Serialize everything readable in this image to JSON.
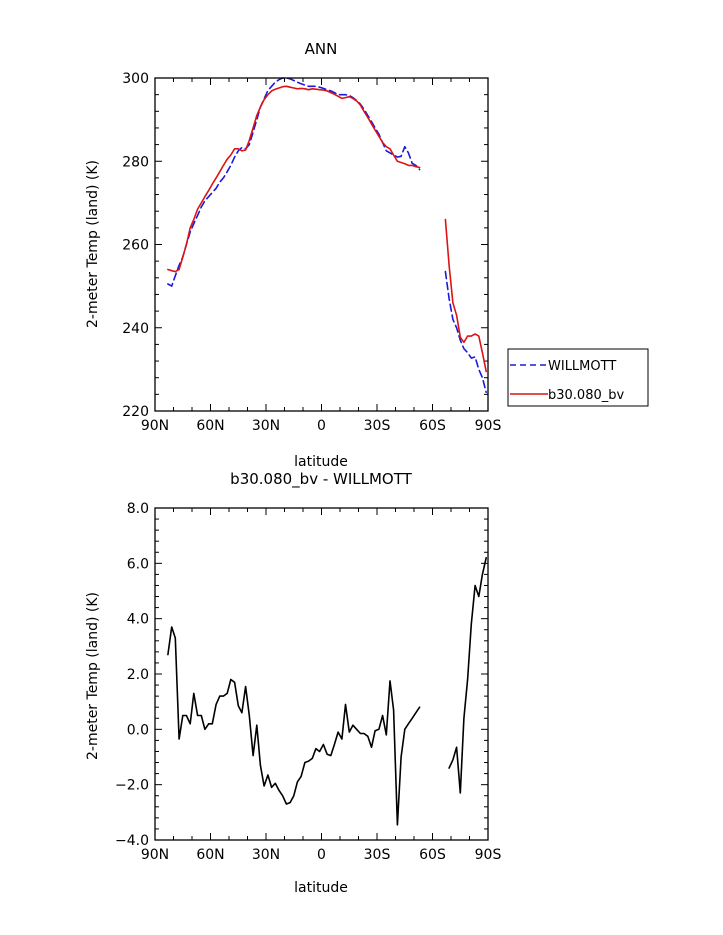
{
  "chart_data": [
    {
      "type": "line",
      "title": "ANN",
      "xlabel": "latitude",
      "ylabel": "2-meter Temp (land) (K)",
      "xlim": [
        90,
        -90
      ],
      "ylim": [
        220,
        300
      ],
      "xticks": [
        90,
        60,
        30,
        0,
        -30,
        -60,
        -90
      ],
      "xtick_labels": [
        "90N",
        "60N",
        "30N",
        "0",
        "30S",
        "60S",
        "90S"
      ],
      "yticks": [
        220,
        240,
        260,
        280,
        300
      ],
      "ytick_labels": [
        "220",
        "240",
        "260",
        "280",
        "300"
      ],
      "legend_position": "right",
      "series": [
        {
          "name": "WILLMOTT",
          "color": "#1a1adc",
          "dash": "dashed",
          "segments": [
            {
              "x": [
                83,
                81,
                79,
                77,
                75,
                73,
                71,
                69,
                67,
                65,
                63,
                61,
                59,
                57,
                55,
                53,
                51,
                49,
                47,
                45,
                43,
                41,
                39,
                37,
                35,
                33,
                31,
                29,
                27,
                25,
                23,
                21,
                19,
                17,
                15,
                13,
                11,
                9,
                7,
                5,
                3,
                1,
                -1,
                -3,
                -5,
                -7,
                -9,
                -11,
                -13,
                -15,
                -17,
                -19,
                -21,
                -23,
                -25,
                -27,
                -29,
                -31,
                -33,
                -35,
                -37,
                -39,
                -41,
                -43,
                -45,
                -47,
                -49,
                -51,
                -53
              ],
              "y": [
                250.5,
                250,
                252.5,
                255,
                257,
                260,
                263,
                265,
                267,
                269,
                270.5,
                271.5,
                272.5,
                273.5,
                275,
                276,
                277.5,
                279,
                281,
                282.5,
                283.3,
                283,
                284,
                287,
                290,
                293,
                295,
                297,
                298,
                299,
                299.6,
                300,
                300,
                299.8,
                299.4,
                299,
                298.6,
                298.3,
                298,
                298,
                298,
                297.8,
                297.5,
                297.2,
                296.9,
                296.5,
                296,
                296,
                296,
                295.8,
                295.3,
                294.6,
                293.7,
                292.5,
                291,
                289.5,
                288,
                286.5,
                284.5,
                282.5,
                282,
                281.5,
                281,
                281.2,
                283.5,
                282,
                279.5,
                279,
                278
              ]
            },
            {
              "x": [
                -67,
                -69,
                -71,
                -73,
                -75,
                -77,
                -79,
                -81,
                -83,
                -85,
                -87,
                -89
              ],
              "y": [
                253.5,
                247,
                242,
                240,
                237,
                235,
                234,
                232.7,
                233,
                230,
                228,
                224.5
              ]
            }
          ]
        },
        {
          "name": "b30.080_bv",
          "color": "#dc1414",
          "dash": "solid",
          "segments": [
            {
              "x": [
                83,
                81,
                79,
                77,
                75,
                73,
                71,
                69,
                67,
                65,
                63,
                61,
                59,
                57,
                55,
                53,
                51,
                49,
                47,
                45,
                43,
                41,
                39,
                37,
                35,
                33,
                31,
                29,
                27,
                25,
                23,
                21,
                19,
                17,
                15,
                13,
                11,
                9,
                7,
                5,
                3,
                1,
                -1,
                -3,
                -5,
                -7,
                -9,
                -11,
                -13,
                -15,
                -17,
                -19,
                -21,
                -23,
                -25,
                -27,
                -29,
                -31,
                -33,
                -35,
                -37,
                -39,
                -41,
                -43,
                -45,
                -47,
                -49,
                -51,
                -53
              ],
              "y": [
                254,
                253.7,
                253.5,
                254,
                257,
                260,
                264,
                266,
                268.5,
                270,
                271.5,
                273,
                274.5,
                276,
                277.5,
                279,
                280.5,
                281.5,
                283,
                283,
                282.5,
                282.7,
                285,
                288,
                291,
                293,
                294.8,
                296,
                296.9,
                297.3,
                297.6,
                297.9,
                298,
                297.8,
                297.6,
                297.4,
                297.5,
                297.4,
                297.2,
                297.4,
                297.3,
                297.2,
                297.1,
                296.9,
                296.5,
                296.1,
                295.6,
                295.1,
                295.3,
                295.5,
                295.1,
                294.5,
                293.5,
                292,
                290.5,
                289,
                287.5,
                286,
                284.5,
                283.5,
                283,
                281.5,
                280,
                279.7,
                279.4,
                279,
                279,
                278.7,
                278.5
              ]
            },
            {
              "x": [
                -67,
                -69,
                -71,
                -73,
                -75,
                -77,
                -79,
                -81,
                -83,
                -85,
                -87,
                -89
              ],
              "y": [
                266,
                255,
                246,
                243,
                237.7,
                236.5,
                238,
                238,
                238.5,
                238,
                234,
                229.5
              ]
            }
          ]
        }
      ]
    },
    {
      "type": "line",
      "title": "b30.080_bv - WILLMOTT",
      "xlabel": "latitude",
      "ylabel": "2-meter Temp (land) (K)",
      "xlim": [
        90,
        -90
      ],
      "ylim": [
        -4,
        8
      ],
      "xticks": [
        90,
        60,
        30,
        0,
        -30,
        -60,
        -90
      ],
      "xtick_labels": [
        "90N",
        "60N",
        "30N",
        "0",
        "30S",
        "60S",
        "90S"
      ],
      "yticks": [
        -4,
        -2,
        0,
        2,
        4,
        6,
        8
      ],
      "ytick_labels": [
        "−4.0",
        "−2.0",
        "0.0",
        "2.0",
        "4.0",
        "6.0",
        "8.0"
      ],
      "series": [
        {
          "color": "#000000",
          "dash": "solid",
          "segments": [
            {
              "x": [
                83,
                81,
                79,
                77,
                75,
                73,
                71,
                69,
                67,
                65,
                63,
                61,
                59,
                57,
                55,
                53,
                51,
                49,
                47,
                45,
                43,
                41,
                39,
                37,
                35,
                33,
                31,
                29,
                27,
                25,
                23,
                21,
                19,
                17,
                15,
                13,
                11,
                9,
                7,
                5,
                3,
                1,
                -1,
                -3,
                -5,
                -7,
                -9,
                -11,
                -13,
                -15,
                -17,
                -19,
                -21,
                -23,
                -25,
                -27,
                -29,
                -31,
                -33,
                -35,
                -37,
                -39,
                -41,
                -43,
                -45,
                -47,
                -49,
                -51,
                -53
              ],
              "y": [
                2.7,
                3.7,
                3.3,
                -0.35,
                0.5,
                0.5,
                0.2,
                1.3,
                0.5,
                0.5,
                0.0,
                0.2,
                0.2,
                0.9,
                1.2,
                1.2,
                1.3,
                1.8,
                1.7,
                0.85,
                0.6,
                1.55,
                0.5,
                -0.95,
                0.15,
                -1.3,
                -2.05,
                -1.65,
                -2.1,
                -1.95,
                -2.2,
                -2.4,
                -2.7,
                -2.65,
                -2.4,
                -1.9,
                -1.7,
                -1.2,
                -1.15,
                -1.05,
                -0.7,
                -0.8,
                -0.55,
                -0.9,
                -0.95,
                -0.55,
                -0.1,
                -0.35,
                0.9,
                -0.1,
                0.15,
                0.0,
                -0.15,
                -0.15,
                -0.25,
                -0.65,
                -0.05,
                0.0,
                0.5,
                -0.2,
                1.75,
                0.7,
                -3.45,
                -1.0,
                0.0,
                0.2,
                0.4,
                0.6,
                0.8
              ]
            },
            {
              "x": [
                -69,
                -71,
                -73,
                -75,
                -77,
                -79,
                -81,
                -83,
                -85,
                -87,
                -89
              ],
              "y": [
                -1.4,
                -1.1,
                -0.65,
                -2.3,
                0.4,
                1.8,
                3.8,
                5.2,
                4.8,
                5.6,
                6.2
              ]
            }
          ]
        }
      ]
    }
  ]
}
